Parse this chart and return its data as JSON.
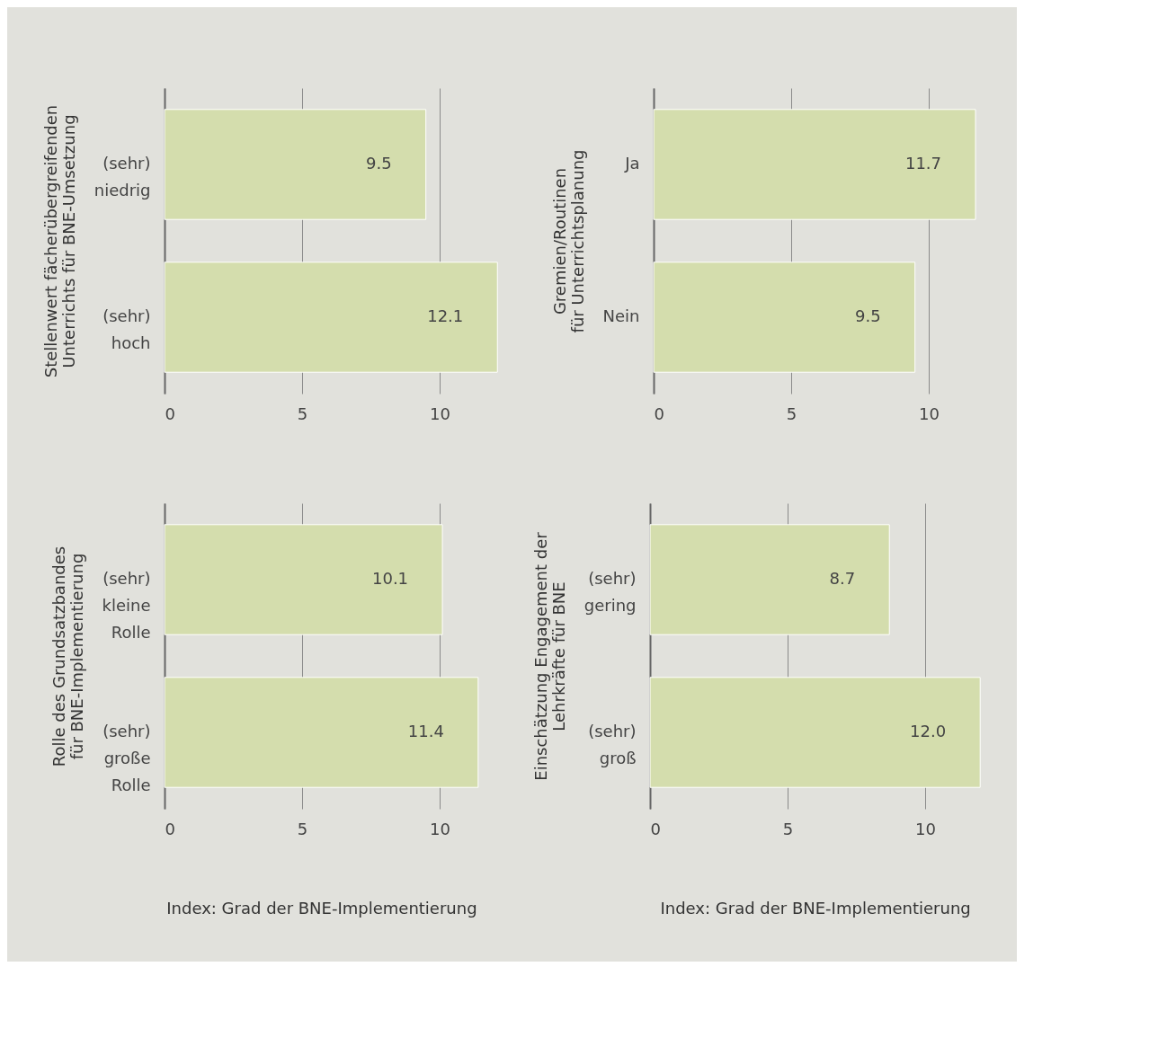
{
  "chart_data": [
    {
      "type": "bar",
      "orientation": "horizontal",
      "ylabel": "Stellenwert fächerübergreifenden\nUnterrichts für BNE-Umsetzung",
      "categories": [
        "(sehr) niedrig",
        "(sehr) hoch"
      ],
      "values": [
        9.5,
        12.1
      ],
      "value_labels": [
        "9.5",
        "12.1"
      ],
      "color": "#d4ddad",
      "xlim": [
        0,
        12.1
      ],
      "xticks": [
        0,
        5,
        10
      ],
      "grid": "x"
    },
    {
      "type": "bar",
      "orientation": "horizontal",
      "ylabel": "Gremien/Routinen\nfür Unterrichtsplanung",
      "categories": [
        "Ja",
        "Nein"
      ],
      "values": [
        11.7,
        9.5
      ],
      "value_labels": [
        "11.7",
        "9.5"
      ],
      "color": "#d4ddad",
      "xlim": [
        0,
        11.7
      ],
      "xticks": [
        0,
        5,
        10
      ],
      "grid": "x"
    },
    {
      "type": "bar",
      "orientation": "horizontal",
      "ylabel": "Rolle des Grundsatzbandes\nfür BNE-Implementierung",
      "xlabel": "Index: Grad der BNE-Implementierung",
      "categories": [
        "(sehr) kleine Rolle",
        "(sehr) große Rolle"
      ],
      "values": [
        10.1,
        11.4
      ],
      "value_labels": [
        "10.1",
        "11.4"
      ],
      "color": "#d4ddad",
      "xlim": [
        0,
        11.4
      ],
      "xticks": [
        0,
        5,
        10
      ],
      "grid": "x"
    },
    {
      "type": "bar",
      "orientation": "horizontal",
      "ylabel": "Einschätzung Engagement der\nLehrkräfte für BNE",
      "xlabel": "Index: Grad der BNE-Implementierung",
      "categories": [
        "(sehr) gering",
        "(sehr) groß"
      ],
      "values": [
        8.7,
        12.0
      ],
      "value_labels": [
        "8.7",
        "12.0"
      ],
      "color": "#d4ddad",
      "xlim": [
        0,
        12.0
      ],
      "xticks": [
        0,
        5,
        10
      ],
      "grid": "x"
    }
  ]
}
